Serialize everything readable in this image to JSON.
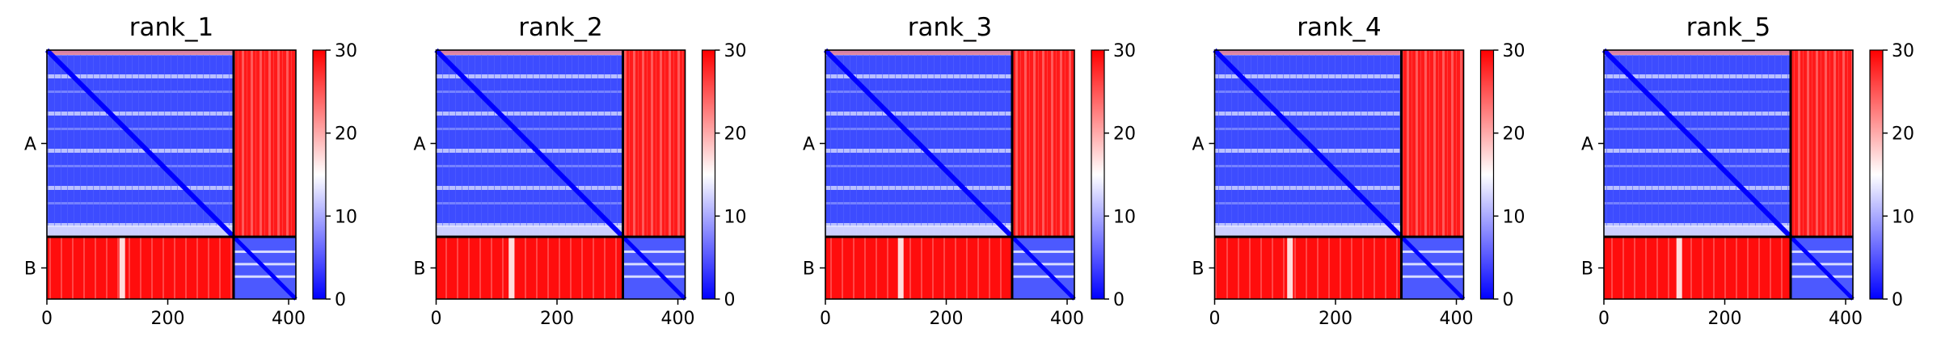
{
  "chart_data": [
    {
      "type": "heatmap",
      "title": "rank_1",
      "chain_labels": [
        "A",
        "B"
      ],
      "chain_lengths": [
        309,
        103
      ],
      "xticks": [
        0,
        200,
        400
      ],
      "xlim": [
        0,
        412
      ],
      "colorbar": {
        "min": 0,
        "max": 30,
        "ticks": [
          0,
          10,
          20,
          30
        ]
      },
      "colormap": [
        "#0000ff",
        "#ffffff",
        "#ff0000"
      ],
      "intra_chain_error": "low",
      "inter_chain_error": "high"
    },
    {
      "type": "heatmap",
      "title": "rank_2",
      "chain_labels": [
        "A",
        "B"
      ],
      "chain_lengths": [
        309,
        103
      ],
      "xticks": [
        0,
        200,
        400
      ],
      "xlim": [
        0,
        412
      ],
      "colorbar": {
        "min": 0,
        "max": 30,
        "ticks": [
          0,
          10,
          20,
          30
        ]
      },
      "colormap": [
        "#0000ff",
        "#ffffff",
        "#ff0000"
      ],
      "intra_chain_error": "low",
      "inter_chain_error": "high"
    },
    {
      "type": "heatmap",
      "title": "rank_3",
      "chain_labels": [
        "A",
        "B"
      ],
      "chain_lengths": [
        309,
        103
      ],
      "xticks": [
        0,
        200,
        400
      ],
      "xlim": [
        0,
        412
      ],
      "colorbar": {
        "min": 0,
        "max": 30,
        "ticks": [
          0,
          10,
          20,
          30
        ]
      },
      "colormap": [
        "#0000ff",
        "#ffffff",
        "#ff0000"
      ],
      "intra_chain_error": "low",
      "inter_chain_error": "high"
    },
    {
      "type": "heatmap",
      "title": "rank_4",
      "chain_labels": [
        "A",
        "B"
      ],
      "chain_lengths": [
        309,
        103
      ],
      "xticks": [
        0,
        200,
        400
      ],
      "xlim": [
        0,
        412
      ],
      "colorbar": {
        "min": 0,
        "max": 30,
        "ticks": [
          0,
          10,
          20,
          30
        ]
      },
      "colormap": [
        "#0000ff",
        "#ffffff",
        "#ff0000"
      ],
      "intra_chain_error": "low",
      "inter_chain_error": "high"
    },
    {
      "type": "heatmap",
      "title": "rank_5",
      "chain_labels": [
        "A",
        "B"
      ],
      "chain_lengths": [
        309,
        103
      ],
      "xticks": [
        0,
        200,
        400
      ],
      "xlim": [
        0,
        412
      ],
      "colorbar": {
        "min": 0,
        "max": 30,
        "ticks": [
          0,
          10,
          20,
          30
        ]
      },
      "colormap": [
        "#0000ff",
        "#ffffff",
        "#ff0000"
      ],
      "intra_chain_error": "low",
      "inter_chain_error": "high"
    }
  ]
}
